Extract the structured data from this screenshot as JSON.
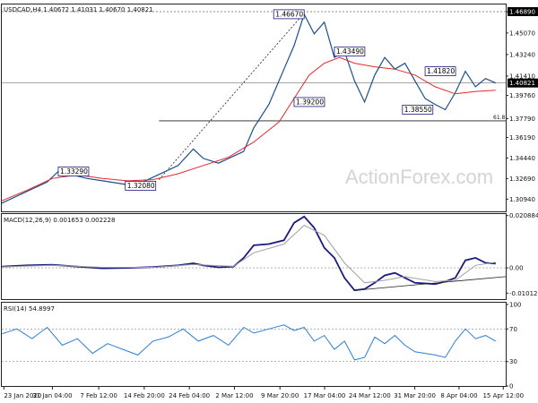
{
  "chart_data": [
    {
      "type": "line",
      "panel": "price",
      "title": "USDCAD,H4  1.40672 1.41031 1.40670 1.40821",
      "ylim": [
        1.299,
        1.475
      ],
      "yticks": [
        {
          "value": 1.4689,
          "label": "1.46890",
          "highlight": true
        },
        {
          "value": 1.4507,
          "label": "1.45070"
        },
        {
          "value": 1.4324,
          "label": "1.43240"
        },
        {
          "value": 1.4141,
          "label": "1.41410"
        },
        {
          "value": 1.3976,
          "label": "1.39760"
        },
        {
          "value": 1.3779,
          "label": "1.37790"
        },
        {
          "value": 1.3619,
          "label": "1.36190"
        },
        {
          "value": 1.3444,
          "label": "1.34440"
        },
        {
          "value": 1.3269,
          "label": "1.32690"
        },
        {
          "value": 1.3094,
          "label": "1.30940"
        }
      ],
      "price_tag": {
        "value": 1.40821,
        "label": "1.40821"
      },
      "fib_line": {
        "value": 1.376,
        "label": "61.8",
        "x_start": 0.312
      },
      "current_price_line": 1.40821,
      "ma_color": "#e8262b",
      "price_color": "#1a4f8a",
      "series": [
        {
          "type": "price",
          "points": [
            [
              0,
              1.306
            ],
            [
              0.03,
              1.312
            ],
            [
              0.06,
              1.318
            ],
            [
              0.09,
              1.324
            ],
            [
              0.112,
              1.3329
            ],
            [
              0.14,
              1.33
            ],
            [
              0.17,
              1.327
            ],
            [
              0.2,
              1.325
            ],
            [
              0.23,
              1.323
            ],
            [
              0.262,
              1.3208
            ],
            [
              0.29,
              1.326
            ],
            [
              0.32,
              1.332
            ],
            [
              0.35,
              1.338
            ],
            [
              0.38,
              1.352
            ],
            [
              0.4,
              1.344
            ],
            [
              0.43,
              1.34
            ],
            [
              0.46,
              1.346
            ],
            [
              0.48,
              1.35
            ],
            [
              0.5,
              1.37
            ],
            [
              0.53,
              1.39
            ],
            [
              0.56,
              1.42
            ],
            [
              0.58,
              1.44
            ],
            [
              0.6,
              1.4667
            ],
            [
              0.62,
              1.45
            ],
            [
              0.64,
              1.46
            ],
            [
              0.66,
              1.43
            ],
            [
              0.68,
              1.4349
            ],
            [
              0.7,
              1.41
            ],
            [
              0.72,
              1.392
            ],
            [
              0.74,
              1.415
            ],
            [
              0.76,
              1.43
            ],
            [
              0.78,
              1.42
            ],
            [
              0.8,
              1.425
            ],
            [
              0.82,
              1.41
            ],
            [
              0.84,
              1.395
            ],
            [
              0.86,
              1.39
            ],
            [
              0.88,
              1.3855
            ],
            [
              0.9,
              1.4
            ],
            [
              0.92,
              1.4182
            ],
            [
              0.94,
              1.405
            ],
            [
              0.96,
              1.412
            ],
            [
              0.98,
              1.4082
            ]
          ]
        },
        {
          "type": "ma",
          "points": [
            [
              0,
              1.308
            ],
            [
              0.05,
              1.317
            ],
            [
              0.1,
              1.327
            ],
            [
              0.15,
              1.33
            ],
            [
              0.2,
              1.327
            ],
            [
              0.25,
              1.325
            ],
            [
              0.3,
              1.326
            ],
            [
              0.35,
              1.331
            ],
            [
              0.4,
              1.338
            ],
            [
              0.45,
              1.345
            ],
            [
              0.5,
              1.358
            ],
            [
              0.55,
              1.375
            ],
            [
              0.58,
              1.395
            ],
            [
              0.61,
              1.415
            ],
            [
              0.64,
              1.425
            ],
            [
              0.67,
              1.43
            ],
            [
              0.7,
              1.425
            ],
            [
              0.74,
              1.422
            ],
            [
              0.78,
              1.42
            ],
            [
              0.82,
              1.415
            ],
            [
              0.86,
              1.405
            ],
            [
              0.9,
              1.399
            ],
            [
              0.94,
              1.401
            ],
            [
              0.98,
              1.402
            ]
          ]
        }
      ],
      "annotations": [
        {
          "label": "1.46670",
          "x": 0.6,
          "y": 1.4667,
          "side": "left"
        },
        {
          "label": "1.43490",
          "x": 0.66,
          "y": 1.4349,
          "side": "right"
        },
        {
          "label": "1.41820",
          "x": 0.84,
          "y": 1.4182,
          "side": "right"
        },
        {
          "label": "1.39200",
          "x": 0.58,
          "y": 1.392,
          "side": "right"
        },
        {
          "label": "1.38550",
          "x": 0.795,
          "y": 1.3855,
          "side": "right"
        },
        {
          "label": "1.33290",
          "x": 0.112,
          "y": 1.3329,
          "side": "right"
        },
        {
          "label": "1.32080",
          "x": 0.245,
          "y": 1.3208,
          "side": "right"
        }
      ],
      "trendline": [
        [
          0.312,
          1.326
        ],
        [
          0.598,
          1.4667
        ]
      ]
    },
    {
      "type": "line",
      "panel": "macd",
      "title": "MACD(12,26,9) 0.001653 0.002228",
      "ylim": [
        -0.0125,
        0.0215
      ],
      "yticks": [
        {
          "value": 0.020884,
          "label": "0.020884"
        },
        {
          "value": 0.0,
          "label": "0.00"
        },
        {
          "value": -0.010121,
          "label": "-0.010121"
        }
      ],
      "macd_color": "#1a1a80",
      "signal_color": "#a0a0a0",
      "series": [
        {
          "type": "macd",
          "points": [
            [
              0,
              0.0005
            ],
            [
              0.05,
              0.001
            ],
            [
              0.1,
              0.0012
            ],
            [
              0.15,
              0.0005
            ],
            [
              0.2,
              -0.0002
            ],
            [
              0.25,
              0.0
            ],
            [
              0.3,
              0.0003
            ],
            [
              0.35,
              0.001
            ],
            [
              0.38,
              0.0018
            ],
            [
              0.4,
              0.001
            ],
            [
              0.43,
              0.0002
            ],
            [
              0.46,
              0.0005
            ],
            [
              0.48,
              0.004
            ],
            [
              0.5,
              0.009
            ],
            [
              0.53,
              0.0095
            ],
            [
              0.56,
              0.011
            ],
            [
              0.58,
              0.018
            ],
            [
              0.6,
              0.0205
            ],
            [
              0.62,
              0.016
            ],
            [
              0.64,
              0.008
            ],
            [
              0.66,
              0.004
            ],
            [
              0.68,
              -0.004
            ],
            [
              0.7,
              -0.009
            ],
            [
              0.72,
              -0.0085
            ],
            [
              0.74,
              -0.006
            ],
            [
              0.76,
              -0.003
            ],
            [
              0.78,
              -0.002
            ],
            [
              0.8,
              -0.004
            ],
            [
              0.82,
              -0.006
            ],
            [
              0.86,
              -0.0065
            ],
            [
              0.88,
              -0.0055
            ],
            [
              0.9,
              -0.004
            ],
            [
              0.92,
              0.003
            ],
            [
              0.94,
              0.004
            ],
            [
              0.96,
              0.002
            ],
            [
              0.98,
              0.0017
            ]
          ]
        },
        {
          "type": "signal",
          "points": [
            [
              0,
              0.0004
            ],
            [
              0.1,
              0.001
            ],
            [
              0.2,
              0.0002
            ],
            [
              0.3,
              0.0002
            ],
            [
              0.38,
              0.0013
            ],
            [
              0.46,
              0.0006
            ],
            [
              0.5,
              0.006
            ],
            [
              0.56,
              0.0095
            ],
            [
              0.6,
              0.017
            ],
            [
              0.64,
              0.013
            ],
            [
              0.68,
              0.002
            ],
            [
              0.72,
              -0.006
            ],
            [
              0.76,
              -0.005
            ],
            [
              0.8,
              -0.0035
            ],
            [
              0.86,
              -0.0055
            ],
            [
              0.9,
              -0.005
            ],
            [
              0.94,
              0.001
            ],
            [
              0.98,
              0.0022
            ]
          ]
        }
      ],
      "trendline": [
        [
          0.7,
          -0.009
        ],
        [
          1.0,
          -0.0035
        ]
      ]
    },
    {
      "type": "line",
      "panel": "rsi",
      "title": "RSI(14) 54.8997",
      "ylim": [
        0,
        100
      ],
      "yticks": [
        {
          "value": 100,
          "label": "100"
        },
        {
          "value": 70,
          "label": "70"
        },
        {
          "value": 30,
          "label": "30"
        },
        {
          "value": 0,
          "label": "0"
        }
      ],
      "rsi_color": "#2b7fd4",
      "series": [
        {
          "type": "rsi",
          "points": [
            [
              0,
              64
            ],
            [
              0.03,
              70
            ],
            [
              0.06,
              58
            ],
            [
              0.09,
              72
            ],
            [
              0.12,
              50
            ],
            [
              0.15,
              58
            ],
            [
              0.18,
              40
            ],
            [
              0.21,
              52
            ],
            [
              0.24,
              45
            ],
            [
              0.27,
              38
            ],
            [
              0.3,
              55
            ],
            [
              0.33,
              60
            ],
            [
              0.36,
              70
            ],
            [
              0.39,
              55
            ],
            [
              0.42,
              62
            ],
            [
              0.45,
              50
            ],
            [
              0.48,
              72
            ],
            [
              0.5,
              65
            ],
            [
              0.53,
              70
            ],
            [
              0.56,
              75
            ],
            [
              0.58,
              68
            ],
            [
              0.6,
              72
            ],
            [
              0.62,
              55
            ],
            [
              0.64,
              62
            ],
            [
              0.66,
              45
            ],
            [
              0.68,
              55
            ],
            [
              0.7,
              32
            ],
            [
              0.72,
              35
            ],
            [
              0.74,
              60
            ],
            [
              0.76,
              52
            ],
            [
              0.78,
              62
            ],
            [
              0.8,
              50
            ],
            [
              0.82,
              42
            ],
            [
              0.84,
              40
            ],
            [
              0.86,
              38
            ],
            [
              0.88,
              35
            ],
            [
              0.9,
              55
            ],
            [
              0.92,
              70
            ],
            [
              0.94,
              58
            ],
            [
              0.96,
              62
            ],
            [
              0.98,
              55
            ]
          ]
        }
      ]
    }
  ],
  "x_axis": {
    "labels": [
      {
        "label": "23 Jan 2020",
        "x": 0.005
      },
      {
        "label": "31 Jan 04:00",
        "x": 0.12
      },
      {
        "label": "7 Feb 12:00",
        "x": 0.23
      },
      {
        "label": "14 Feb 20:00",
        "x": 0.338
      },
      {
        "label": "24 Feb 04:00",
        "x": 0.445
      },
      {
        "label": "2 Mar 12:00",
        "x": 0.552
      },
      {
        "label": "9 Mar 20:00",
        "x": 0.66
      },
      {
        "label": "17 Mar 04:00",
        "x": 0.766
      },
      {
        "label": "24 Mar 12:00",
        "x": 0.873
      },
      {
        "label": "31 Mar 20:00",
        "x": 0.98
      },
      {
        "label": "8 Apr 04:00",
        "x": 1.085
      },
      {
        "label": "15 Apr 12:00",
        "x": 1.19
      }
    ]
  },
  "watermark": "ActionForex.com"
}
